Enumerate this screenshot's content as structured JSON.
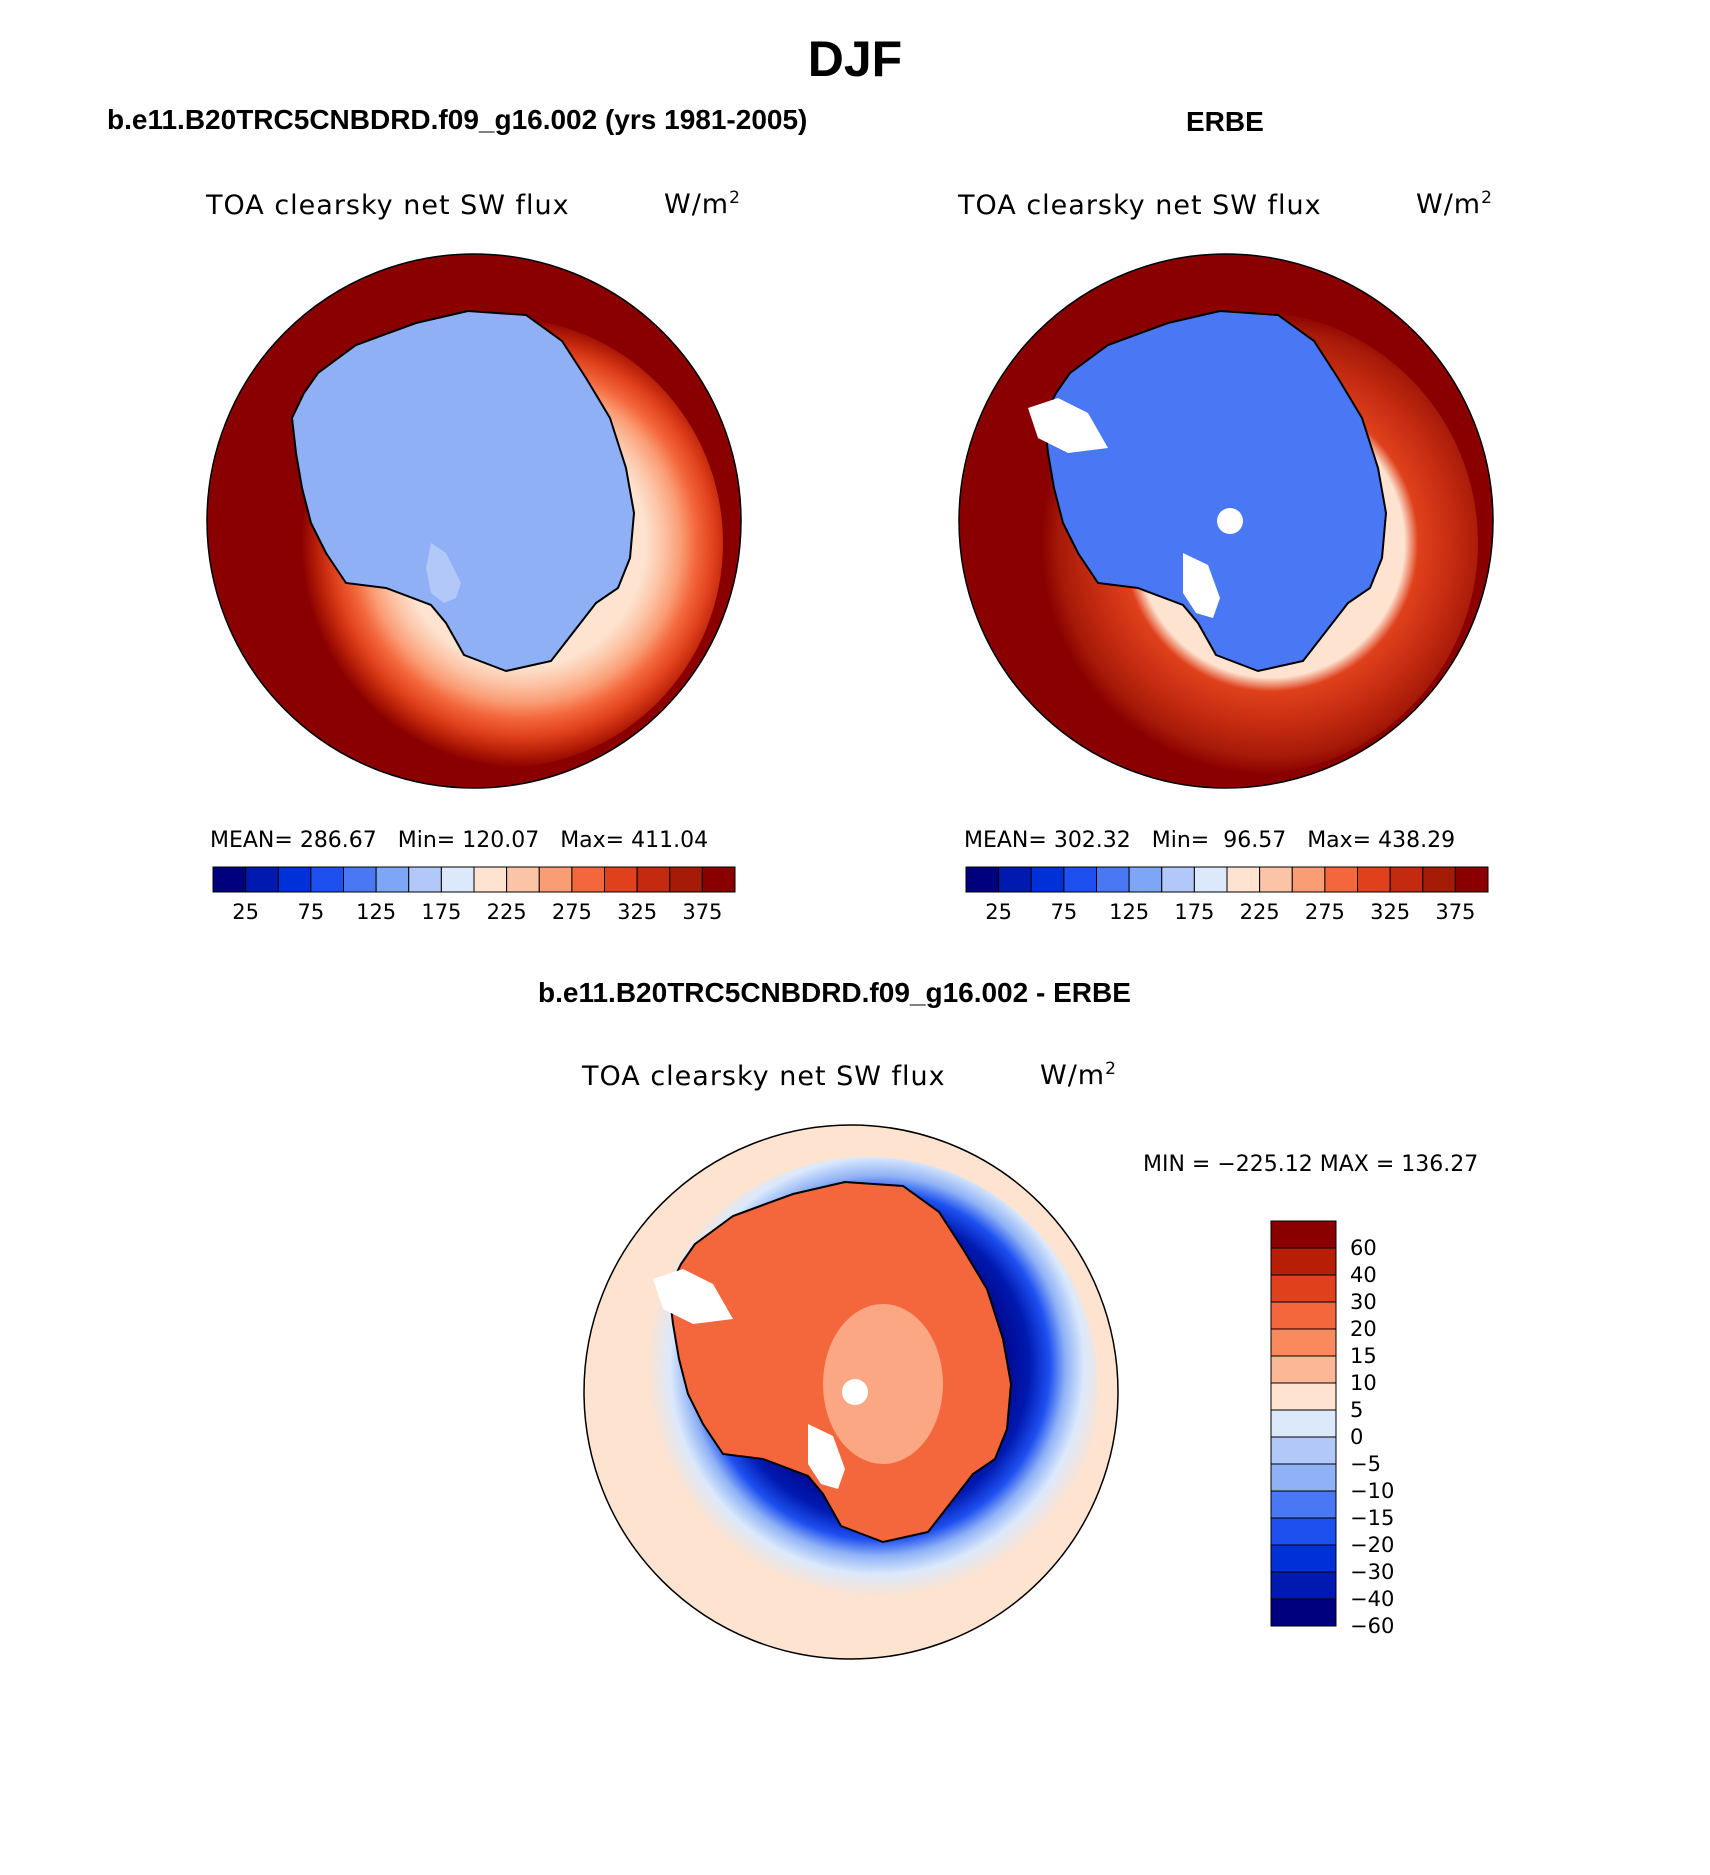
{
  "title": "DJF",
  "panels": [
    {
      "case_title": "b.e11.B20TRC5CNBDRD.f09_g16.002 (yrs 1981-2005)",
      "variable": "TOA clearsky net SW flux",
      "units_base": "W/m",
      "units_exp": "2",
      "stats": "MEAN= 286.67   Min= 120.07   Max= 411.04"
    },
    {
      "case_title": "ERBE",
      "variable": "TOA clearsky net SW flux",
      "units_base": "W/m",
      "units_exp": "2",
      "stats": "MEAN= 302.32   Min=  96.57   Max= 438.29"
    }
  ],
  "diff_panel": {
    "case_title": "b.e11.B20TRC5CNBDRD.f09_g16.002 - ERBE",
    "variable": "TOA clearsky net SW flux",
    "units_base": "W/m",
    "units_exp": "2",
    "stats": "MIN = −225.12 MAX = 136.27"
  },
  "abs_colorbar": {
    "colors": [
      "#00007f",
      "#0019b0",
      "#0030d8",
      "#1e50f0",
      "#4a78f4",
      "#7ea6f6",
      "#b1c8f8",
      "#dbe9fb",
      "#fde3d0",
      "#fcc4a6",
      "#fa9c74",
      "#f4673c",
      "#e0411c",
      "#c32a10",
      "#a61a08",
      "#8a0000"
    ],
    "labels": [
      "25",
      "75",
      "125",
      "175",
      "225",
      "275",
      "325",
      "375"
    ]
  },
  "diff_colorbar": {
    "colors": [
      "#8a0000",
      "#b81d05",
      "#e0411c",
      "#f4673c",
      "#fa8a5c",
      "#fcb896",
      "#fde3d0",
      "#dbe9fb",
      "#b1c8f8",
      "#8fb2f6",
      "#4a78f4",
      "#1e50f0",
      "#0030d8",
      "#0019b0",
      "#00007f"
    ],
    "labels": [
      "60",
      "40",
      "30",
      "20",
      "15",
      "10",
      "5",
      "0",
      "−5",
      "−10",
      "−15",
      "−20",
      "−30",
      "−40",
      "−60"
    ]
  }
}
